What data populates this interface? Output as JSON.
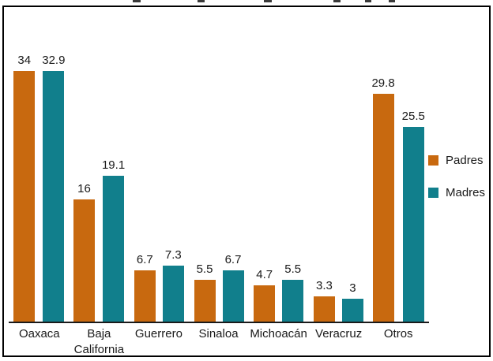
{
  "chart_data": {
    "type": "bar",
    "categories": [
      "Oaxaca",
      "Baja California",
      "Guerrero",
      "Sinaloa",
      "Michoacán",
      "Veracruz",
      "Otros"
    ],
    "series": [
      {
        "name": "Padres",
        "color": "#C8690F",
        "values": [
          34,
          16,
          6.7,
          5.5,
          4.7,
          3.3,
          29.8
        ],
        "labels": [
          "34",
          "16",
          "6.7",
          "5.5",
          "4.7",
          "3.3",
          "29.8"
        ]
      },
      {
        "name": "Madres",
        "color": "#117F8C",
        "values": [
          32.9,
          19.1,
          7.3,
          6.7,
          5.5,
          3,
          25.5
        ],
        "labels": [
          "32.9",
          "19.1",
          "7.3",
          "6.7",
          "5.5",
          "3",
          "25.5"
        ]
      }
    ],
    "title": "",
    "xlabel": "",
    "ylabel": "",
    "ylim": [
      0,
      35
    ],
    "grid": false,
    "value_labels": true,
    "legend_position": "right"
  },
  "legend": {
    "items": [
      {
        "label": "Padres",
        "color": "#C8690F"
      },
      {
        "label": "Madres",
        "color": "#117F8C"
      }
    ]
  }
}
